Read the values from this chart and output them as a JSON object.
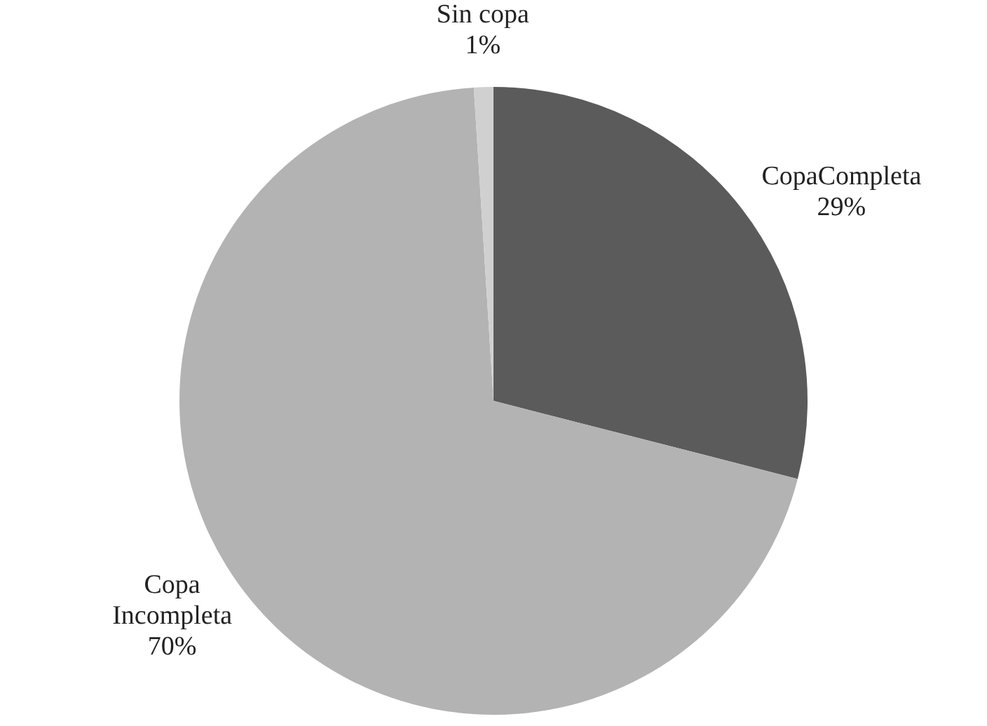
{
  "chart_data": {
    "type": "pie",
    "categories": [
      "CopaCompleta",
      "Copa Incompleta",
      "Sin copa"
    ],
    "values": [
      29,
      70,
      1
    ],
    "colors": [
      "#5b5b5b",
      "#b3b3b3",
      "#d0d0d0"
    ],
    "value_labels": [
      "29%",
      "70%",
      "1%"
    ],
    "legend": false
  }
}
